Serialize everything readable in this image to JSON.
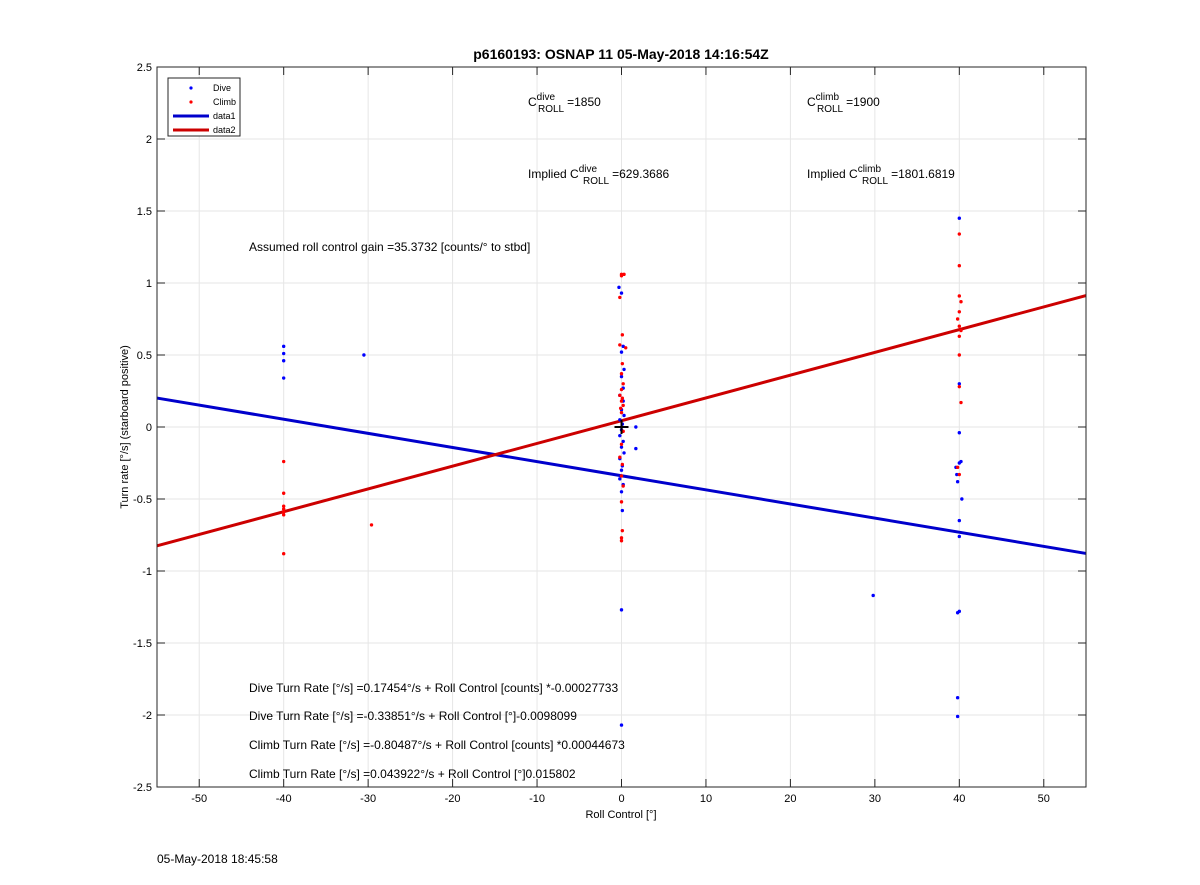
{
  "figure": {
    "footer_timestamp": "05-May-2018 18:45:58"
  },
  "chart_data": {
    "type": "scatter",
    "title": "p6160193: OSNAP 11 05-May-2018 14:16:54Z",
    "xlabel": "Roll Control [°]",
    "ylabel": "Turn rate [°/s] (starboard positive)",
    "xlim": [
      -55,
      55
    ],
    "ylim": [
      -2.5,
      2.5
    ],
    "xticks": [
      -50,
      -40,
      -30,
      -20,
      -10,
      0,
      10,
      20,
      30,
      40,
      50
    ],
    "yticks": [
      -2.5,
      -2,
      -1.5,
      -1,
      -0.5,
      0,
      0.5,
      1,
      1.5,
      2,
      2.5
    ],
    "xtick_labels": [
      "-50",
      "-40",
      "-30",
      "-20",
      "-10",
      "0",
      "10",
      "20",
      "30",
      "40",
      "50"
    ],
    "ytick_labels": [
      "-2.5",
      "-2",
      "-1.5",
      "-1",
      "-0.5",
      "0",
      "0.5",
      "1",
      "1.5",
      "2",
      "2.5"
    ],
    "grid": true,
    "legend_position": "top-left",
    "legend": [
      {
        "label": "Dive",
        "kind": "marker",
        "color": "#0000ff"
      },
      {
        "label": "Climb",
        "kind": "marker",
        "color": "#ff0000"
      },
      {
        "label": "data1",
        "kind": "line",
        "color": "#0000cc"
      },
      {
        "label": "data2",
        "kind": "line",
        "color": "#cc0000"
      }
    ],
    "series": [
      {
        "name": "Dive",
        "color": "#0000ff",
        "points": [
          [
            -40,
            0.56
          ],
          [
            -40,
            0.51
          ],
          [
            -40,
            0.46
          ],
          [
            -40,
            0.34
          ],
          [
            -30.5,
            0.5
          ],
          [
            -0.3,
            0.97
          ],
          [
            0,
            0.93
          ],
          [
            0.2,
            0.56
          ],
          [
            0,
            0.52
          ],
          [
            0.3,
            0.4
          ],
          [
            0,
            0.35
          ],
          [
            0.2,
            0.27
          ],
          [
            -0.2,
            0.22
          ],
          [
            0.2,
            0.18
          ],
          [
            0,
            0.12
          ],
          [
            0.3,
            0.08
          ],
          [
            -0.2,
            0.05
          ],
          [
            0.1,
            0.02
          ],
          [
            0,
            -0.02
          ],
          [
            -0.2,
            -0.06
          ],
          [
            0.2,
            -0.1
          ],
          [
            0,
            -0.14
          ],
          [
            0.3,
            -0.18
          ],
          [
            -0.2,
            -0.22
          ],
          [
            0.1,
            -0.27
          ],
          [
            0,
            -0.3
          ],
          [
            -0.2,
            -0.36
          ],
          [
            0.2,
            -0.4
          ],
          [
            0,
            -0.45
          ],
          [
            0.1,
            -0.58
          ],
          [
            1.7,
            0.0
          ],
          [
            1.7,
            -0.15
          ],
          [
            0,
            -1.27
          ],
          [
            0,
            -2.07
          ],
          [
            40,
            1.45
          ],
          [
            40,
            0.3
          ],
          [
            40,
            -0.04
          ],
          [
            39.6,
            -0.28
          ],
          [
            39.7,
            -0.33
          ],
          [
            39.8,
            -0.38
          ],
          [
            40.2,
            -0.24
          ],
          [
            40,
            -0.25
          ],
          [
            40.3,
            -0.5
          ],
          [
            40,
            -0.65
          ],
          [
            40,
            -0.76
          ],
          [
            40,
            -1.28
          ],
          [
            39.8,
            -1.29
          ],
          [
            39.8,
            -1.88
          ],
          [
            39.8,
            -2.01
          ],
          [
            29.8,
            -1.17
          ]
        ]
      },
      {
        "name": "Climb",
        "color": "#ff0000",
        "points": [
          [
            -40,
            -0.24
          ],
          [
            -40,
            -0.46
          ],
          [
            -40,
            -0.55
          ],
          [
            -40,
            -0.57
          ],
          [
            -40,
            -0.59
          ],
          [
            -40,
            -0.61
          ],
          [
            -40,
            -0.88
          ],
          [
            -29.6,
            -0.68
          ],
          [
            0,
            1.06
          ],
          [
            0.3,
            1.06
          ],
          [
            0,
            1.05
          ],
          [
            -0.2,
            0.9
          ],
          [
            0.1,
            0.64
          ],
          [
            -0.2,
            0.57
          ],
          [
            0.5,
            0.55
          ],
          [
            0.1,
            0.44
          ],
          [
            0,
            0.37
          ],
          [
            0.2,
            0.3
          ],
          [
            0,
            0.26
          ],
          [
            -0.2,
            0.22
          ],
          [
            0.1,
            0.2
          ],
          [
            0,
            0.18
          ],
          [
            0.2,
            0.15
          ],
          [
            -0.1,
            0.13
          ],
          [
            0,
            0.1
          ],
          [
            0.2,
            -0.03
          ],
          [
            0,
            -0.12
          ],
          [
            -0.2,
            -0.21
          ],
          [
            0.1,
            -0.26
          ],
          [
            0,
            -0.34
          ],
          [
            0.2,
            -0.41
          ],
          [
            0,
            -0.52
          ],
          [
            0.1,
            -0.72
          ],
          [
            0,
            -0.77
          ],
          [
            0,
            -0.79
          ],
          [
            40,
            1.34
          ],
          [
            40,
            1.12
          ],
          [
            40,
            0.91
          ],
          [
            40.2,
            0.87
          ],
          [
            40,
            0.8
          ],
          [
            39.8,
            0.75
          ],
          [
            40,
            0.7
          ],
          [
            40.2,
            0.67
          ],
          [
            40,
            0.63
          ],
          [
            40,
            0.5
          ],
          [
            40,
            0.28
          ],
          [
            40.2,
            0.17
          ],
          [
            39.8,
            -0.28
          ],
          [
            40,
            -0.33
          ]
        ]
      }
    ],
    "lines": [
      {
        "name": "data1",
        "color": "#0000cc",
        "intercept": -0.33851,
        "slope": -0.0098099
      },
      {
        "name": "data2",
        "color": "#cc0000",
        "intercept": 0.043922,
        "slope": 0.015802
      }
    ],
    "origin_marker": [
      0,
      0
    ],
    "annotations": {
      "c_roll_dive": {
        "symbol": "C",
        "sup": "dive",
        "sub": "ROLL",
        "value": "=1850"
      },
      "c_roll_climb": {
        "symbol": "C",
        "sup": "climb",
        "sub": "ROLL",
        "value": "=1900"
      },
      "implied_dive": {
        "prefix": "Implied ",
        "symbol": "C",
        "sup": "dive",
        "sub": "ROLL",
        "value": "=629.3686"
      },
      "implied_climb": {
        "prefix": "Implied ",
        "symbol": "C",
        "sup": "climb",
        "sub": "ROLL",
        "value": "=1801.6819"
      },
      "gain": "Assumed roll control gain =35.3732 [counts/° to stbd]",
      "eq_dive_counts": "Dive Turn Rate [°/s] =0.17454°/s + Roll Control [counts] *-0.00027733",
      "eq_dive_deg": "Dive Turn Rate [°/s] =-0.33851°/s + Roll Control [°]-0.0098099",
      "eq_climb_counts": "Climb Turn Rate [°/s] =-0.80487°/s + Roll Control [counts] *0.00044673",
      "eq_climb_deg": "Climb Turn Rate [°/s] =0.043922°/s + Roll Control [°]0.015802"
    }
  }
}
